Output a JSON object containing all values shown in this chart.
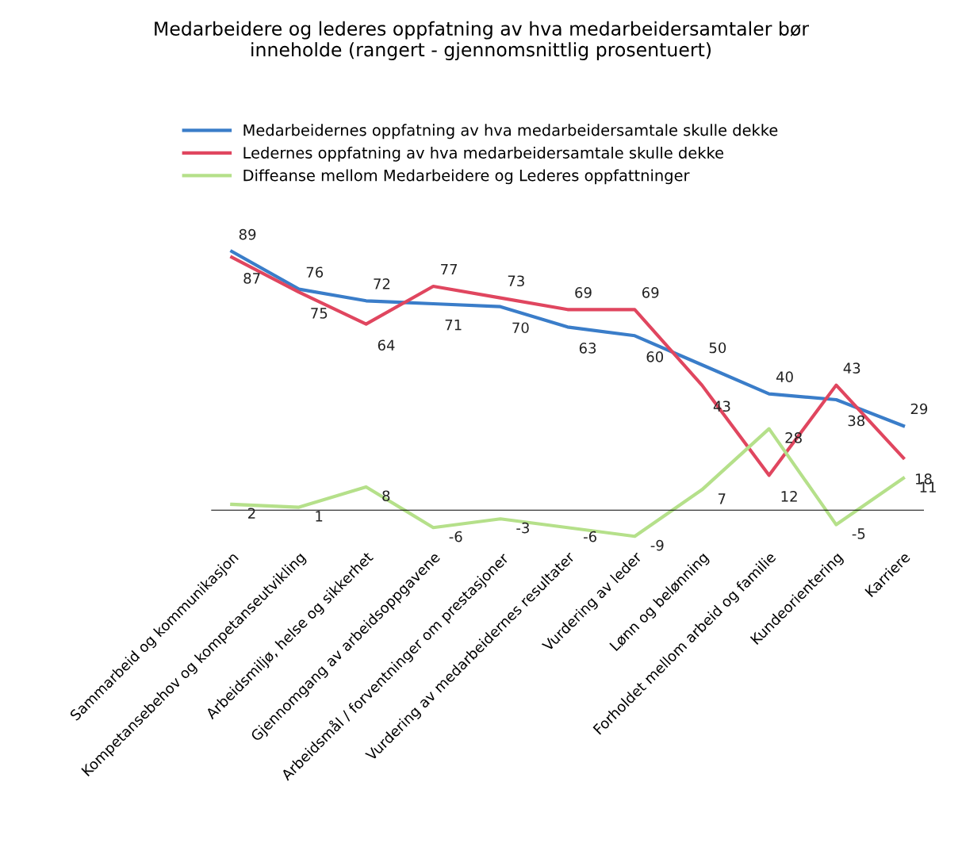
{
  "chart_data": {
    "type": "line",
    "title": "Medarbeidere og lederes oppfatning av hva medarbeidersamtaler bør\ninneholde (rangert - gjennomsnittlig prosentuert)",
    "categories": [
      "Sammarbeid og kommunikasjon",
      "Kompetansebehov og kompetanseutvikling",
      "Arbeidsmiljø, helse og sikkerhet",
      "Gjennomgang av arbeidsoppgavene",
      "Arbeidsmål / forventninger om prestasjoner",
      "Vurdering av medarbeidernes resultater",
      "Vurdering av leder",
      "Lønn og belønning",
      "Forholdet mellom arbeid og familie",
      "Kundeorientering",
      "Karriere"
    ],
    "series": [
      {
        "name": "Medarbeidernes oppfatning av hva medarbeidersamtale skulle dekke",
        "color": "#3a7dc9",
        "values": [
          89,
          76,
          72,
          71,
          70,
          63,
          60,
          50,
          40,
          38,
          29
        ]
      },
      {
        "name": "Ledernes oppfatning av hva medarbeidersamtale skulle dekke",
        "color": "#e0465f",
        "values": [
          87,
          75,
          64,
          77,
          73,
          69,
          69,
          43,
          12,
          43,
          18
        ]
      },
      {
        "name": "Diffeanse mellom Medarbeidere og Lederes oppfattninger",
        "color": "#b5e08a",
        "values": [
          2,
          1,
          8,
          -6,
          -3,
          -6,
          -9,
          7,
          28,
          -5,
          11
        ]
      }
    ],
    "data_labels": true,
    "legend": "top",
    "grid": false,
    "marker": "none",
    "line_style": "solid"
  }
}
